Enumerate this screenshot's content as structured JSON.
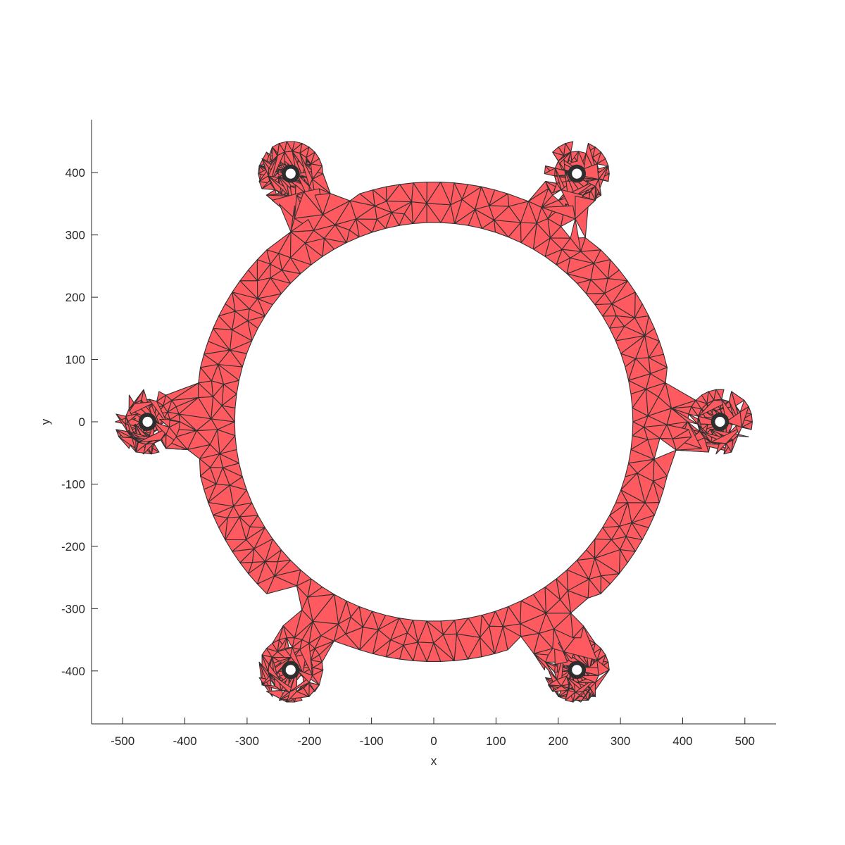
{
  "chart_data": {
    "type": "mesh",
    "title": "",
    "xlabel": "x",
    "ylabel": "y",
    "xlim": [
      -550,
      550
    ],
    "ylim": [
      -485,
      485
    ],
    "xticks": [
      -500,
      -400,
      -300,
      -200,
      -100,
      0,
      100,
      200,
      300,
      400,
      500
    ],
    "yticks": [
      -400,
      -300,
      -200,
      -100,
      0,
      100,
      200,
      300,
      400
    ],
    "xtick_labels": [
      "-500",
      "-400",
      "-300",
      "-200",
      "-100",
      "0",
      "100",
      "200",
      "300",
      "400",
      "500"
    ],
    "ytick_labels": [
      "-400",
      "-300",
      "-200",
      "-100",
      "0",
      "100",
      "200",
      "300",
      "400"
    ],
    "grid": false,
    "box": false,
    "face_color": "#ff5a60",
    "edge_color": "#303030",
    "geometry": {
      "inner_radius": 320,
      "outer_radius": 385,
      "lug_count": 6,
      "lug_center_distance": 460,
      "lug_radius": 52,
      "hole_radius": 8,
      "lug_angles_deg": [
        0,
        60,
        120,
        180,
        240,
        300
      ]
    }
  }
}
